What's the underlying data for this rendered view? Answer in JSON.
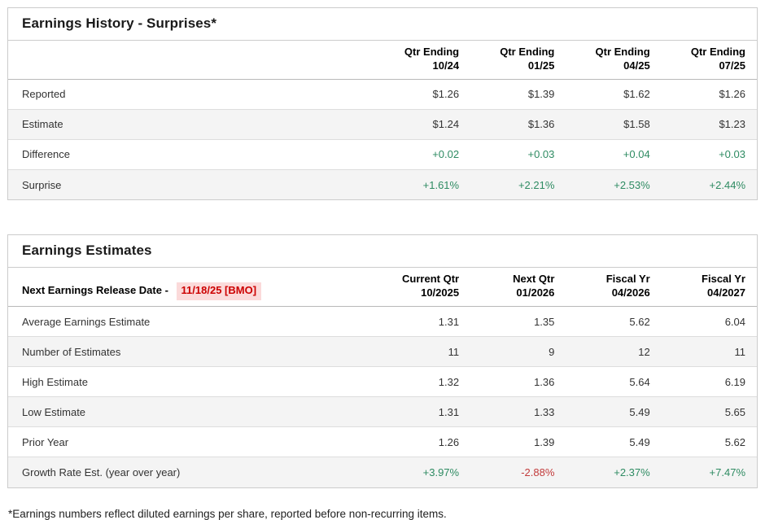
{
  "colors": {
    "positive": "#2e8b62",
    "negative": "#c23b3b",
    "accent_red": "#cc0000",
    "date_highlight_bg": "#fbdada",
    "row_alt_bg": "#f4f4f4",
    "border": "#cccccc",
    "row_border": "#dddddd",
    "text": "#333333",
    "heading": "#1a1a1a"
  },
  "history": {
    "title": "Earnings History - Surprises*",
    "columns": [
      {
        "line1": "Qtr Ending",
        "line2": "10/24"
      },
      {
        "line1": "Qtr Ending",
        "line2": "01/25"
      },
      {
        "line1": "Qtr Ending",
        "line2": "04/25"
      },
      {
        "line1": "Qtr Ending",
        "line2": "07/25"
      }
    ],
    "rows": [
      {
        "label": "Reported",
        "values": [
          "$1.26",
          "$1.39",
          "$1.62",
          "$1.26"
        ]
      },
      {
        "label": "Estimate",
        "values": [
          "$1.24",
          "$1.36",
          "$1.58",
          "$1.23"
        ]
      },
      {
        "label": "Difference",
        "values": [
          "+0.02",
          "+0.03",
          "+0.04",
          "+0.03"
        ]
      },
      {
        "label": "Surprise",
        "values": [
          "+1.61%",
          "+2.21%",
          "+2.53%",
          "+2.44%"
        ]
      }
    ]
  },
  "estimates": {
    "title": "Earnings Estimates",
    "release_label": "Next Earnings Release Date -",
    "release_date": "11/18/25 [BMO]",
    "columns": [
      {
        "line1": "Current Qtr",
        "line2": "10/2025"
      },
      {
        "line1": "Next Qtr",
        "line2": "01/2026"
      },
      {
        "line1": "Fiscal Yr",
        "line2": "04/2026"
      },
      {
        "line1": "Fiscal Yr",
        "line2": "04/2027"
      }
    ],
    "rows": [
      {
        "label": "Average Earnings Estimate",
        "values": [
          "1.31",
          "1.35",
          "5.62",
          "6.04"
        ]
      },
      {
        "label": "Number of Estimates",
        "values": [
          "11",
          "9",
          "12",
          "11"
        ]
      },
      {
        "label": "High Estimate",
        "values": [
          "1.32",
          "1.36",
          "5.64",
          "6.19"
        ]
      },
      {
        "label": "Low Estimate",
        "values": [
          "1.31",
          "1.33",
          "5.49",
          "5.65"
        ]
      },
      {
        "label": "Prior Year",
        "values": [
          "1.26",
          "1.39",
          "5.49",
          "5.62"
        ]
      },
      {
        "label": "Growth Rate Est. (year over year)",
        "values": [
          "+3.97%",
          "-2.88%",
          "+2.37%",
          "+7.47%"
        ]
      }
    ]
  },
  "footnote": "*Earnings numbers reflect diluted earnings per share, reported before non-recurring items."
}
